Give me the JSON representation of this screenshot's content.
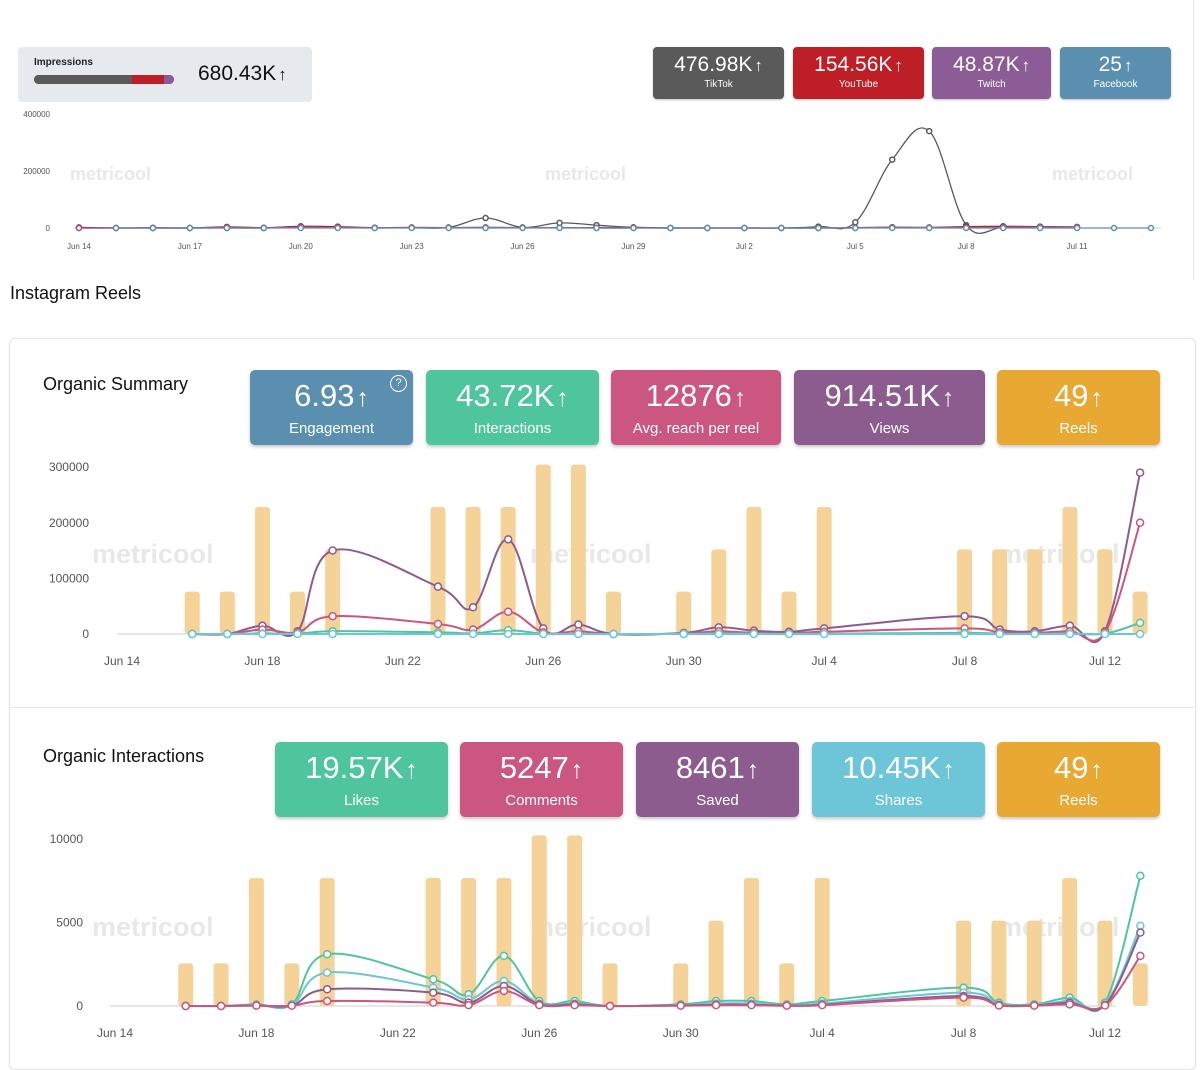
{
  "impressions": {
    "label": "Impressions",
    "value": "680.43K",
    "bar": {
      "tiktok": 0.7,
      "youtube": 0.23,
      "twitch": 0.07
    }
  },
  "networks": [
    {
      "value": "476.98K",
      "label": "TikTok",
      "color": "#5a5a5a"
    },
    {
      "value": "154.56K",
      "label": "YouTube",
      "color": "#be1e25"
    },
    {
      "value": "48.87K",
      "label": "Twitch",
      "color": "#8c5c96"
    },
    {
      "value": "25",
      "label": "Facebook",
      "color": "#5b8fb0"
    }
  ],
  "arrow": "↑",
  "watermark": "metricool",
  "section_title": "Instagram Reels",
  "organic_summary": {
    "title": "Organic Summary",
    "help": "?",
    "kpis": [
      {
        "value": "6.93",
        "label": "Engagement",
        "color": "#5b8fb0"
      },
      {
        "value": "43.72K",
        "label": "Interactions",
        "color": "#4fc59e"
      },
      {
        "value": "12876",
        "label": "Avg. reach per reel",
        "color": "#cb5680"
      },
      {
        "value": "914.51K",
        "label": "Views",
        "color": "#8c5c8f"
      },
      {
        "value": "49",
        "label": "Reels",
        "color": "#e8a832"
      }
    ]
  },
  "organic_interactions": {
    "title": "Organic Interactions",
    "kpis": [
      {
        "value": "19.57K",
        "label": "Likes",
        "color": "#4fc59e"
      },
      {
        "value": "5247",
        "label": "Comments",
        "color": "#cb5680"
      },
      {
        "value": "8461",
        "label": "Saved",
        "color": "#8c5c8f"
      },
      {
        "value": "10.45K",
        "label": "Shares",
        "color": "#6cc6d8"
      },
      {
        "value": "49",
        "label": "Reels",
        "color": "#e8a832"
      }
    ]
  },
  "chart_data": [
    {
      "type": "line",
      "x_tick_labels": [
        "Jun 14",
        "Jun 17",
        "Jun 20",
        "Jun 23",
        "Jun 26",
        "Jun 29",
        "Jul 2",
        "Jul 5",
        "Jul 8",
        "Jul 11"
      ],
      "y_tick_labels": [
        "400000",
        "200000",
        "0"
      ],
      "ylim": [
        0,
        400000
      ],
      "x_range": [
        0,
        29
      ],
      "series": [
        {
          "name": "TikTok",
          "color": "#5a5a5a",
          "values": [
            0,
            0,
            0,
            0,
            0,
            0,
            2000,
            2000,
            1000,
            1000,
            2000,
            35000,
            2000,
            18000,
            10000,
            2000,
            0,
            0,
            0,
            0,
            5000,
            20000,
            240000,
            340000,
            10000,
            2000,
            2000,
            2000,
            null,
            null
          ]
        },
        {
          "name": "YouTube",
          "color": "#be1e25",
          "values": [
            2000,
            0,
            1000,
            0,
            4000,
            1000,
            6000,
            5000,
            1000,
            2000,
            1000,
            2000,
            1000,
            1000,
            1000,
            2000,
            0,
            0,
            0,
            0,
            0,
            1000,
            3000,
            2000,
            5000,
            6000,
            5000,
            4000,
            null,
            null
          ]
        },
        {
          "name": "Twitch",
          "color": "#8c5c96",
          "values": [
            0,
            0,
            0,
            0,
            1000,
            0,
            2000,
            1000,
            0,
            1000,
            1000,
            2000,
            1000,
            1000,
            0,
            0,
            0,
            0,
            0,
            0,
            0,
            0,
            2000,
            1000,
            1000,
            2000,
            3000,
            2000,
            null,
            null
          ]
        },
        {
          "name": "Facebook",
          "color": "#5b8fb0",
          "values": [
            null,
            0,
            0,
            0,
            0,
            0,
            0,
            0,
            0,
            0,
            0,
            0,
            0,
            0,
            0,
            0,
            0,
            0,
            0,
            0,
            0,
            0,
            0,
            0,
            0,
            0,
            0,
            0,
            0,
            0
          ]
        }
      ]
    },
    {
      "type": "bar+line",
      "x_tick_labels": [
        "Jun 14",
        "Jun 18",
        "Jun 22",
        "Jun 26",
        "Jun 30",
        "Jul 4",
        "Jul 8",
        "Jul 12"
      ],
      "y_tick_labels": [
        "300000",
        "200000",
        "100000",
        "0"
      ],
      "ylim": [
        0,
        300000
      ],
      "x_range": [
        0,
        28
      ],
      "bars": {
        "color": "#f5d398",
        "bar_max": 3,
        "values": [
          0,
          0,
          1,
          1,
          3,
          1,
          2,
          0,
          0,
          3,
          3,
          3,
          4,
          4,
          1,
          0,
          1,
          2,
          3,
          1,
          3,
          0,
          0,
          0,
          2,
          2,
          2,
          3,
          2,
          1
        ]
      },
      "series": [
        {
          "name": "Views",
          "color": "#8c5c8f",
          "values": [
            null,
            null,
            0,
            0,
            15000,
            5000,
            150000,
            null,
            null,
            85000,
            48000,
            170000,
            10000,
            17000,
            0,
            null,
            2000,
            12000,
            6000,
            4000,
            10000,
            null,
            null,
            null,
            32000,
            8000,
            5000,
            15000,
            5000,
            290000
          ]
        },
        {
          "name": "Reach",
          "color": "#cb5680",
          "values": [
            null,
            null,
            0,
            0,
            8000,
            3000,
            32000,
            null,
            null,
            18000,
            8000,
            40000,
            3000,
            5000,
            0,
            null,
            1000,
            5000,
            2000,
            1000,
            4000,
            null,
            null,
            null,
            10000,
            3000,
            2000,
            5000,
            3000,
            200000
          ]
        },
        {
          "name": "Interactions",
          "color": "#4fc59e",
          "values": [
            null,
            null,
            0,
            0,
            1000,
            500,
            5000,
            null,
            null,
            3000,
            1000,
            7000,
            500,
            500,
            0,
            null,
            200,
            1000,
            500,
            200,
            500,
            null,
            null,
            null,
            2000,
            500,
            300,
            1000,
            500,
            20000
          ]
        },
        {
          "name": "Engagement",
          "color": "#6cc6d8",
          "values": [
            null,
            null,
            0,
            0,
            0,
            0,
            0,
            null,
            null,
            0,
            0,
            0,
            0,
            0,
            0,
            null,
            0,
            0,
            0,
            0,
            0,
            null,
            null,
            null,
            0,
            0,
            0,
            0,
            0,
            0
          ]
        }
      ]
    },
    {
      "type": "bar+line",
      "x_tick_labels": [
        "Jun 14",
        "Jun 18",
        "Jun 22",
        "Jun 26",
        "Jun 30",
        "Jul 4",
        "Jul 8",
        "Jul 12"
      ],
      "y_tick_labels": [
        "10000",
        "5000",
        "0"
      ],
      "ylim": [
        0,
        10000
      ],
      "x_range": [
        0,
        28
      ],
      "bars": {
        "color": "#f5d398",
        "bar_max": 3,
        "values": [
          0,
          0,
          1,
          1,
          3,
          1,
          3,
          0,
          0,
          3,
          3,
          3,
          4,
          4,
          1,
          0,
          1,
          2,
          3,
          1,
          3,
          0,
          0,
          0,
          2,
          2,
          2,
          3,
          2,
          1
        ]
      },
      "series": [
        {
          "name": "Likes",
          "color": "#4fc59e",
          "values": [
            null,
            null,
            0,
            0,
            100,
            100,
            3100,
            null,
            null,
            1600,
            700,
            3000,
            300,
            300,
            0,
            null,
            100,
            300,
            300,
            100,
            300,
            null,
            null,
            null,
            1100,
            200,
            100,
            500,
            200,
            7800
          ]
        },
        {
          "name": "Shares",
          "color": "#6cc6d8",
          "values": [
            null,
            null,
            0,
            0,
            50,
            50,
            2000,
            null,
            null,
            1100,
            400,
            1500,
            150,
            150,
            0,
            null,
            50,
            150,
            150,
            50,
            150,
            null,
            null,
            null,
            800,
            100,
            50,
            300,
            100,
            4800
          ]
        },
        {
          "name": "Saved",
          "color": "#8c5c8f",
          "values": [
            null,
            null,
            0,
            0,
            30,
            30,
            1000,
            null,
            null,
            800,
            200,
            1200,
            100,
            100,
            0,
            null,
            30,
            80,
            80,
            30,
            80,
            null,
            null,
            null,
            600,
            50,
            30,
            200,
            50,
            4400
          ]
        },
        {
          "name": "Comments",
          "color": "#cb5680",
          "values": [
            null,
            null,
            0,
            0,
            20,
            20,
            300,
            null,
            null,
            200,
            50,
            900,
            50,
            50,
            0,
            null,
            20,
            50,
            50,
            20,
            50,
            null,
            null,
            null,
            500,
            30,
            20,
            100,
            30,
            3000
          ]
        }
      ]
    }
  ]
}
